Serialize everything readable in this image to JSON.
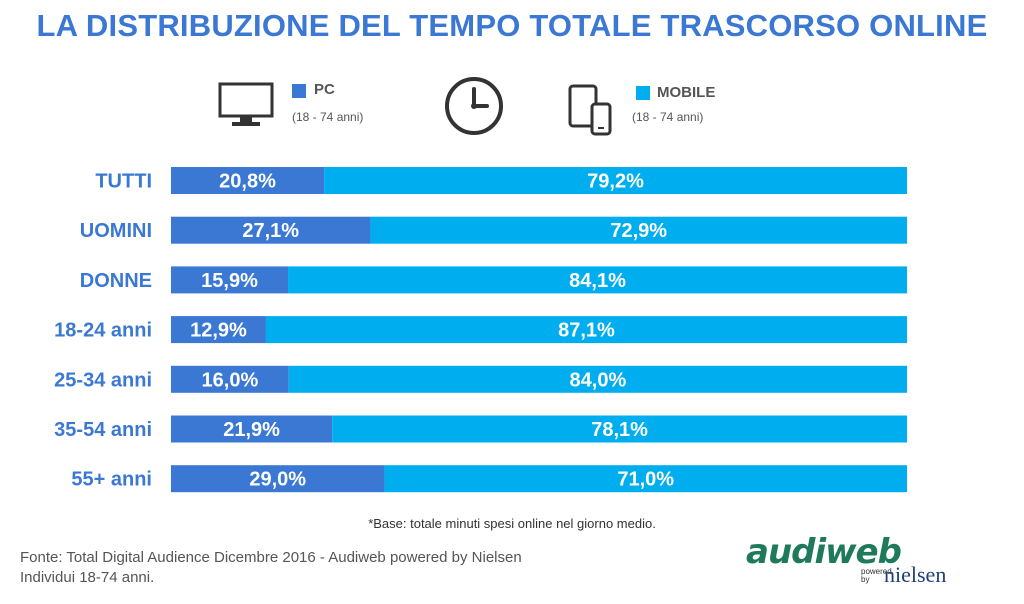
{
  "title": "LA DISTRIBUZIONE DEL TEMPO TOTALE TRASCORSO ONLINE",
  "legend": {
    "pc": {
      "label": "PC",
      "sub": "(18 - 74 anni)",
      "color": "#3a78d4",
      "icon": "monitor-icon"
    },
    "mobile": {
      "label": "MOBILE",
      "sub": "(18 - 74 anni)",
      "color": "#00aeef",
      "icon": "devices-icon"
    },
    "center_icon": "clock-icon"
  },
  "chart_data": {
    "type": "bar",
    "stacked": true,
    "orientation": "horizontal",
    "categories": [
      "TUTTI",
      "UOMINI",
      "DONNE",
      "18-24 anni",
      "25-34 anni",
      "35-54 anni",
      "55+ anni"
    ],
    "series": [
      {
        "name": "PC",
        "color": "#3a78d4",
        "values": [
          20.8,
          27.1,
          15.9,
          12.9,
          16.0,
          21.9,
          29.0
        ],
        "labels": [
          "20,8%",
          "27,1%",
          "15,9%",
          "12,9%",
          "16,0%",
          "21,9%",
          "29,0%"
        ]
      },
      {
        "name": "MOBILE",
        "color": "#00aeef",
        "values": [
          79.2,
          72.9,
          84.1,
          87.1,
          84.0,
          78.1,
          71.0
        ],
        "labels": [
          "79,2%",
          "72,9%",
          "84,1%",
          "87,1%",
          "84,0%",
          "78,1%",
          "71,0%"
        ]
      }
    ],
    "xlim": [
      0,
      100
    ]
  },
  "note": "*Base: totale minuti spesi online nel giorno medio.",
  "source": {
    "line1": "Fonte: Total Digital Audience Dicembre 2016 - Audiweb powered by Nielsen",
    "line2": "Individui 18-74 anni."
  },
  "logo": {
    "name": "audiweb",
    "powered": "powered by",
    "partner": "nielsen"
  }
}
